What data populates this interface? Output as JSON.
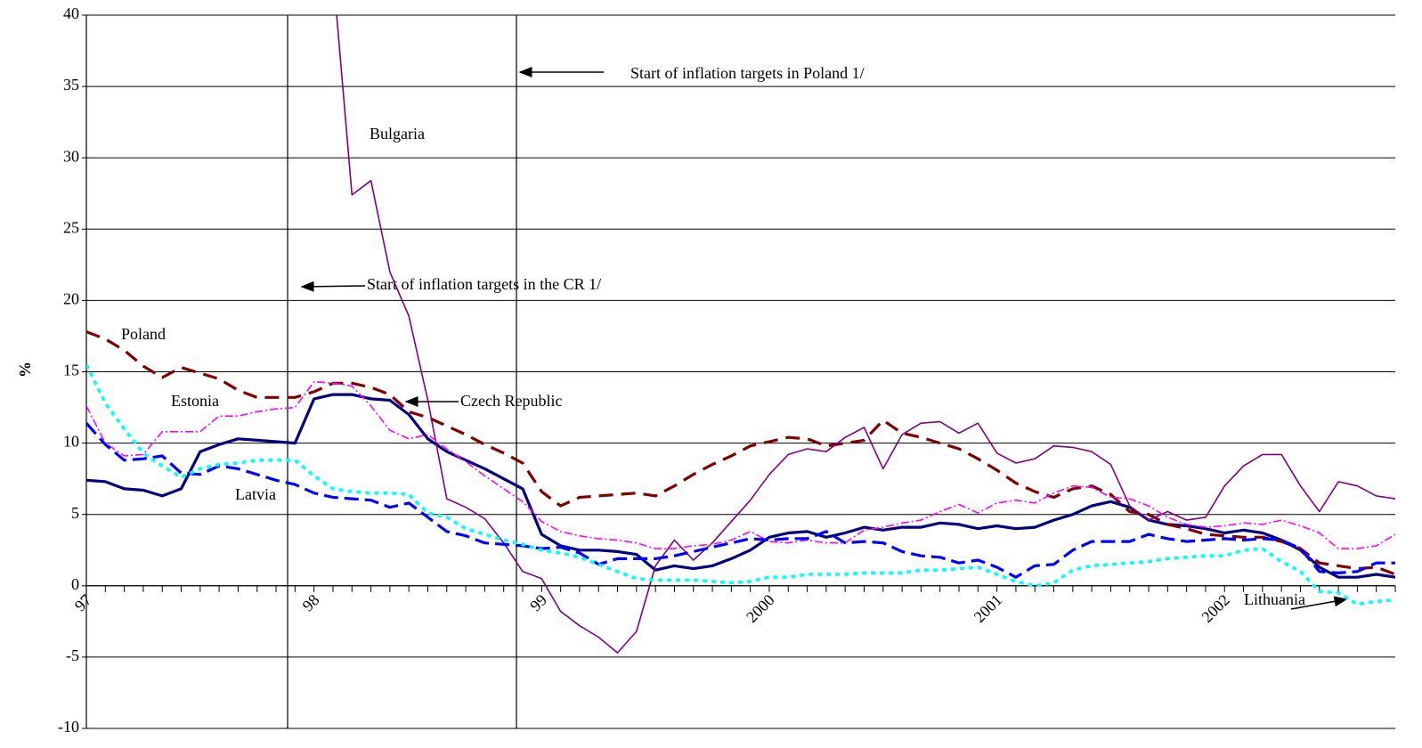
{
  "chart_data": {
    "type": "line",
    "y_label": "%",
    "categories": [
      "97",
      null,
      null,
      null,
      null,
      null,
      null,
      null,
      null,
      null,
      null,
      null,
      "98",
      null,
      null,
      null,
      null,
      null,
      null,
      null,
      null,
      null,
      null,
      null,
      "99",
      null,
      null,
      null,
      null,
      null,
      null,
      null,
      null,
      null,
      null,
      null,
      "2000",
      null,
      null,
      null,
      null,
      null,
      null,
      null,
      null,
      null,
      null,
      null,
      "2001",
      null,
      null,
      null,
      null,
      null,
      null,
      null,
      null,
      null,
      null,
      null,
      "2002",
      null,
      null,
      null,
      null,
      null,
      null,
      null,
      null,
      null
    ],
    "ylim": [
      -10,
      40
    ],
    "yticks": [
      -10,
      -5,
      0,
      5,
      10,
      15,
      20,
      25,
      30,
      35,
      40
    ],
    "grid": true,
    "annotations": [
      "Start of inflation targets in Poland 1/",
      "Start of inflation targets in the CR 1/"
    ],
    "series": [
      {
        "name": "Czech Republic",
        "color": "#000080",
        "values": [
          7.4,
          7.3,
          6.8,
          6.7,
          6.3,
          6.8,
          9.4,
          9.9,
          10.3,
          10.2,
          10.1,
          10.0,
          13.1,
          13.4,
          13.4,
          13.1,
          13.0,
          12.0,
          10.3,
          9.4,
          8.8,
          8.2,
          7.5,
          6.8,
          3.6,
          2.8,
          2.5,
          2.5,
          2.4,
          2.2,
          1.1,
          1.4,
          1.2,
          1.4,
          1.9,
          2.5,
          3.4,
          3.7,
          3.8,
          3.4,
          3.7,
          4.1,
          3.9,
          4.1,
          4.1,
          4.4,
          4.3,
          4.0,
          4.2,
          4.0,
          4.1,
          4.6,
          5.0,
          5.6,
          5.9,
          5.5,
          4.6,
          4.3,
          4.2,
          4.0,
          3.7,
          3.9,
          3.7,
          3.2,
          2.5,
          1.3,
          0.6,
          0.6,
          0.8,
          0.6
        ]
      },
      {
        "name": "Poland",
        "color": "#800000",
        "values": [
          17.8,
          17.3,
          16.5,
          15.4,
          14.6,
          15.3,
          14.9,
          14.5,
          13.7,
          13.2,
          13.2,
          13.2,
          13.6,
          14.2,
          14.2,
          13.9,
          13.4,
          12.2,
          11.8,
          11.2,
          10.6,
          9.9,
          9.3,
          8.6,
          6.6,
          5.6,
          6.2,
          6.3,
          6.4,
          6.5,
          6.3,
          7.0,
          7.8,
          8.5,
          9.1,
          9.8,
          10.1,
          10.4,
          10.3,
          9.8,
          10.0,
          10.2,
          11.6,
          10.7,
          10.4,
          10.0,
          9.6,
          8.9,
          8.1,
          7.2,
          6.6,
          6.2,
          6.8,
          7.0,
          6.4,
          5.2,
          5.0,
          4.3,
          4.0,
          3.6,
          3.5,
          3.4,
          3.4,
          3.1,
          2.6,
          1.6,
          1.4,
          1.2,
          1.3,
          0.8
        ]
      },
      {
        "name": "Bulgaria",
        "color": "#800080",
        "values": [
          null,
          null,
          null,
          null,
          null,
          null,
          null,
          null,
          null,
          null,
          null,
          null,
          null,
          43,
          27.4,
          28.4,
          22.0,
          18.9,
          13.0,
          6.1,
          5.5,
          4.7,
          3.0,
          1.0,
          0.5,
          -1.8,
          -2.8,
          -3.6,
          -4.7,
          -3.2,
          1.4,
          3.2,
          1.8,
          3.0,
          4.5,
          6.0,
          7.8,
          9.2,
          9.6,
          9.4,
          10.4,
          11.1,
          8.2,
          10.6,
          11.4,
          11.5,
          10.7,
          11.4,
          9.3,
          8.6,
          8.9,
          9.8,
          9.7,
          9.4,
          8.5,
          5.6,
          4.6,
          5.2,
          4.6,
          4.8,
          7.0,
          8.4,
          9.2,
          9.2,
          7.0,
          5.2,
          7.3,
          7.0,
          6.3,
          6.1
        ]
      },
      {
        "name": "Estonia",
        "color": "#ff00ff",
        "values": [
          12.6,
          10.0,
          9.1,
          9.2,
          10.8,
          10.8,
          10.8,
          11.9,
          11.9,
          12.2,
          12.4,
          12.5,
          14.3,
          14.2,
          14.0,
          12.6,
          10.9,
          10.3,
          10.6,
          9.6,
          8.7,
          7.7,
          6.8,
          5.9,
          4.5,
          3.8,
          3.5,
          3.3,
          3.2,
          3.0,
          2.6,
          2.6,
          2.8,
          2.9,
          3.2,
          3.8,
          3.1,
          3.0,
          3.2,
          3.0,
          3.0,
          3.9,
          4.1,
          4.4,
          4.6,
          5.2,
          5.7,
          5.1,
          5.8,
          6.0,
          5.8,
          6.5,
          7.0,
          6.9,
          6.2,
          6.1,
          5.6,
          4.8,
          4.3,
          4.1,
          4.2,
          4.4,
          4.3,
          4.6,
          4.2,
          3.7,
          2.6,
          2.6,
          2.8,
          3.6
        ]
      },
      {
        "name": "Latvia",
        "color": "#0000ff",
        "values": [
          11.4,
          9.9,
          8.8,
          8.9,
          9.1,
          7.9,
          7.8,
          8.4,
          8.2,
          7.8,
          7.4,
          7.1,
          6.5,
          6.2,
          6.1,
          6.0,
          5.5,
          5.8,
          4.8,
          3.8,
          3.5,
          3.0,
          2.9,
          2.8,
          2.6,
          2.7,
          2.3,
          1.5,
          1.9,
          1.9,
          1.9,
          2.1,
          2.4,
          2.7,
          3.0,
          3.3,
          3.2,
          3.3,
          3.3,
          3.8,
          3.0,
          3.1,
          3.0,
          2.4,
          2.1,
          2.0,
          1.6,
          1.8,
          1.3,
          0.6,
          1.4,
          1.5,
          2.5,
          3.1,
          3.1,
          3.1,
          3.6,
          3.3,
          3.1,
          3.2,
          3.3,
          3.2,
          3.3,
          3.2,
          2.6,
          1.0,
          0.9,
          1.0,
          1.6,
          1.6
        ]
      },
      {
        "name": "Lithuania",
        "color": "#00ffff",
        "values": [
          15.5,
          12.8,
          11.0,
          9.3,
          8.4,
          7.6,
          8.2,
          8.5,
          8.6,
          8.8,
          8.8,
          8.8,
          7.7,
          6.8,
          6.6,
          6.5,
          6.5,
          6.4,
          5.1,
          4.8,
          4.0,
          3.6,
          3.2,
          2.9,
          2.5,
          2.3,
          2.0,
          1.5,
          1.0,
          0.5,
          0.4,
          0.4,
          0.4,
          0.3,
          0.2,
          0.3,
          0.6,
          0.6,
          0.8,
          0.8,
          0.8,
          0.9,
          0.9,
          0.9,
          1.1,
          1.1,
          1.2,
          1.3,
          0.8,
          0.3,
          0,
          0.2,
          1.1,
          1.4,
          1.5,
          1.6,
          1.7,
          1.9,
          2.0,
          2.1,
          2.1,
          2.5,
          2.6,
          1.7,
          1.0,
          -0.4,
          -0.5,
          -1.3,
          -1.1,
          -1.0
        ]
      }
    ]
  }
}
